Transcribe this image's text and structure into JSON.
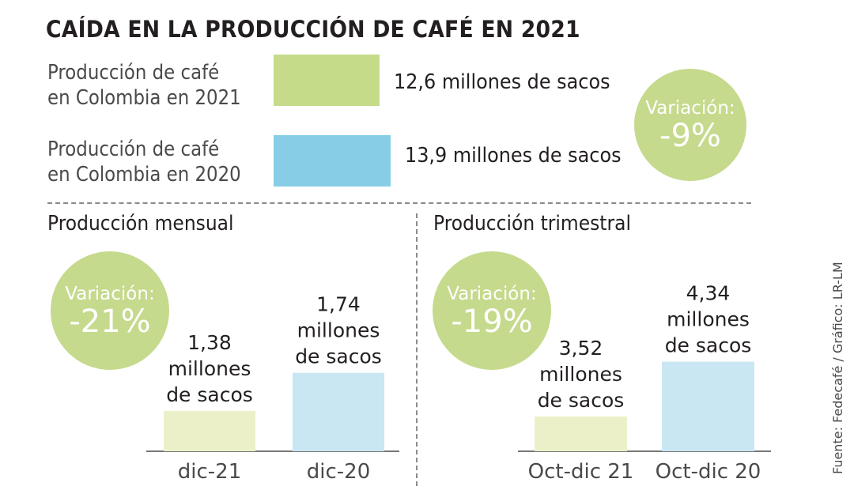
{
  "title": "CAÍDA EN LA PRODUCCIÓN DE CAFÉ EN 2021",
  "summary": {
    "rows": [
      {
        "label_line1": "Producción de café",
        "label_line2": "en Colombia en 2021",
        "value_text": "12,6 millones de sacos",
        "value": 12.6,
        "color": "#c5db8a"
      },
      {
        "label_line1": "Producción de café",
        "label_line2": "en Colombia en 2020",
        "value_text": "13,9 millones de sacos",
        "value": 13.9,
        "color": "#87cde6"
      }
    ],
    "variation_label": "Variación:",
    "variation_value": "-9%"
  },
  "monthly": {
    "title": "Producción mensual",
    "variation_label": "Variación:",
    "variation_value": "-21%"
  },
  "quarterly": {
    "title": "Producción trimestral",
    "variation_label": "Variación:",
    "variation_value": "-19%"
  },
  "source": "Fuente: Fedecafé / Gráfico: LR-LM",
  "chart_data": [
    {
      "type": "bar",
      "title": "CAÍDA EN LA PRODUCCIÓN DE CAFÉ EN 2021",
      "categories": [
        "Producción de café en Colombia en 2021",
        "Producción de café en Colombia en 2020"
      ],
      "values": [
        12.6,
        13.9
      ],
      "value_labels": [
        "12,6 millones de sacos",
        "13,9 millones de sacos"
      ],
      "orientation": "horizontal",
      "colors": [
        "#c5db8a",
        "#87cde6"
      ],
      "annotation": "Variación: -9%"
    },
    {
      "type": "bar",
      "title": "Producción mensual",
      "categories": [
        "dic-21",
        "dic-20"
      ],
      "values": [
        1.38,
        1.74
      ],
      "value_labels": [
        [
          "1,38",
          "millones",
          "de sacos"
        ],
        [
          "1,74",
          "millones",
          "de sacos"
        ]
      ],
      "colors": [
        "#ecf0c8",
        "#c8e7f2"
      ],
      "annotation": "Variación: -21%"
    },
    {
      "type": "bar",
      "title": "Producción trimestral",
      "categories": [
        "Oct-dic 21",
        "Oct-dic 20"
      ],
      "values": [
        3.52,
        4.34
      ],
      "value_labels": [
        [
          "3,52",
          "millones",
          "de sacos"
        ],
        [
          "4,34",
          "millones",
          "de sacos"
        ]
      ],
      "colors": [
        "#ecf0c8",
        "#c8e7f2"
      ],
      "annotation": "Variación: -19%"
    }
  ]
}
